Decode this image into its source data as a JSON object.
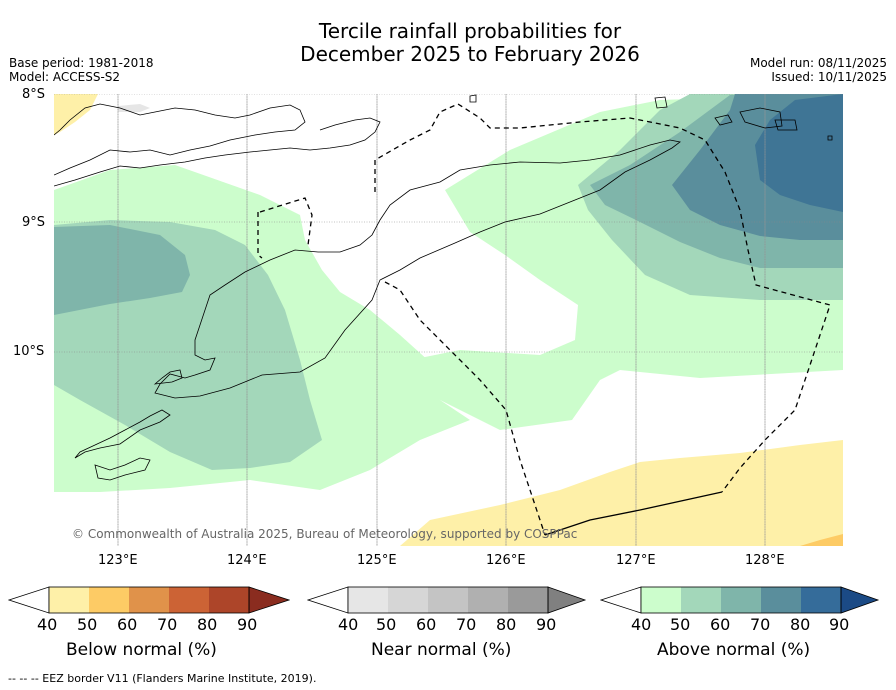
{
  "title_line1": "Tercile rainfall probabilities for",
  "title_line2": "December 2025 to February 2026",
  "base_period": "Base period: 1981-2018",
  "model": "Model: ACCESS-S2",
  "model_run": "Model run: 08/11/2025",
  "issued": "Issued: 10/11/2025",
  "copyright": "© Commonwealth of Australia 2025, Bureau of Meteorology, supported by COSPPac",
  "lat_labels": [
    "8°S",
    "9°S",
    "10°S"
  ],
  "lon_labels": [
    "123°E",
    "124°E",
    "125°E",
    "126°E",
    "127°E",
    "128°E"
  ],
  "colorbars": [
    {
      "label": "Below normal (%)",
      "ticks": [
        "40",
        "50",
        "60",
        "70",
        "80",
        "90"
      ],
      "colors": [
        "#fef0a8",
        "#fdcb65",
        "#e0924a",
        "#cc6335",
        "#ad4529",
        "#8a2c1f"
      ]
    },
    {
      "label": "Near normal (%)",
      "ticks": [
        "40",
        "50",
        "60",
        "70",
        "80",
        "90"
      ],
      "colors": [
        "#e6e6e6",
        "#d6d6d6",
        "#c4c4c4",
        "#b0b0b0",
        "#9a9a9a",
        "#808080"
      ]
    },
    {
      "label": "Above normal (%)",
      "ticks": [
        "40",
        "50",
        "60",
        "70",
        "80",
        "90"
      ],
      "colors": [
        "#ccfdcc",
        "#a3d7ba",
        "#7fb5aa",
        "#5a8e9c",
        "#356c9a",
        "#1b4a85"
      ]
    }
  ],
  "footer": "--  --  -- EEZ border V11 (Flanders Marine Institute, 2019)."
}
